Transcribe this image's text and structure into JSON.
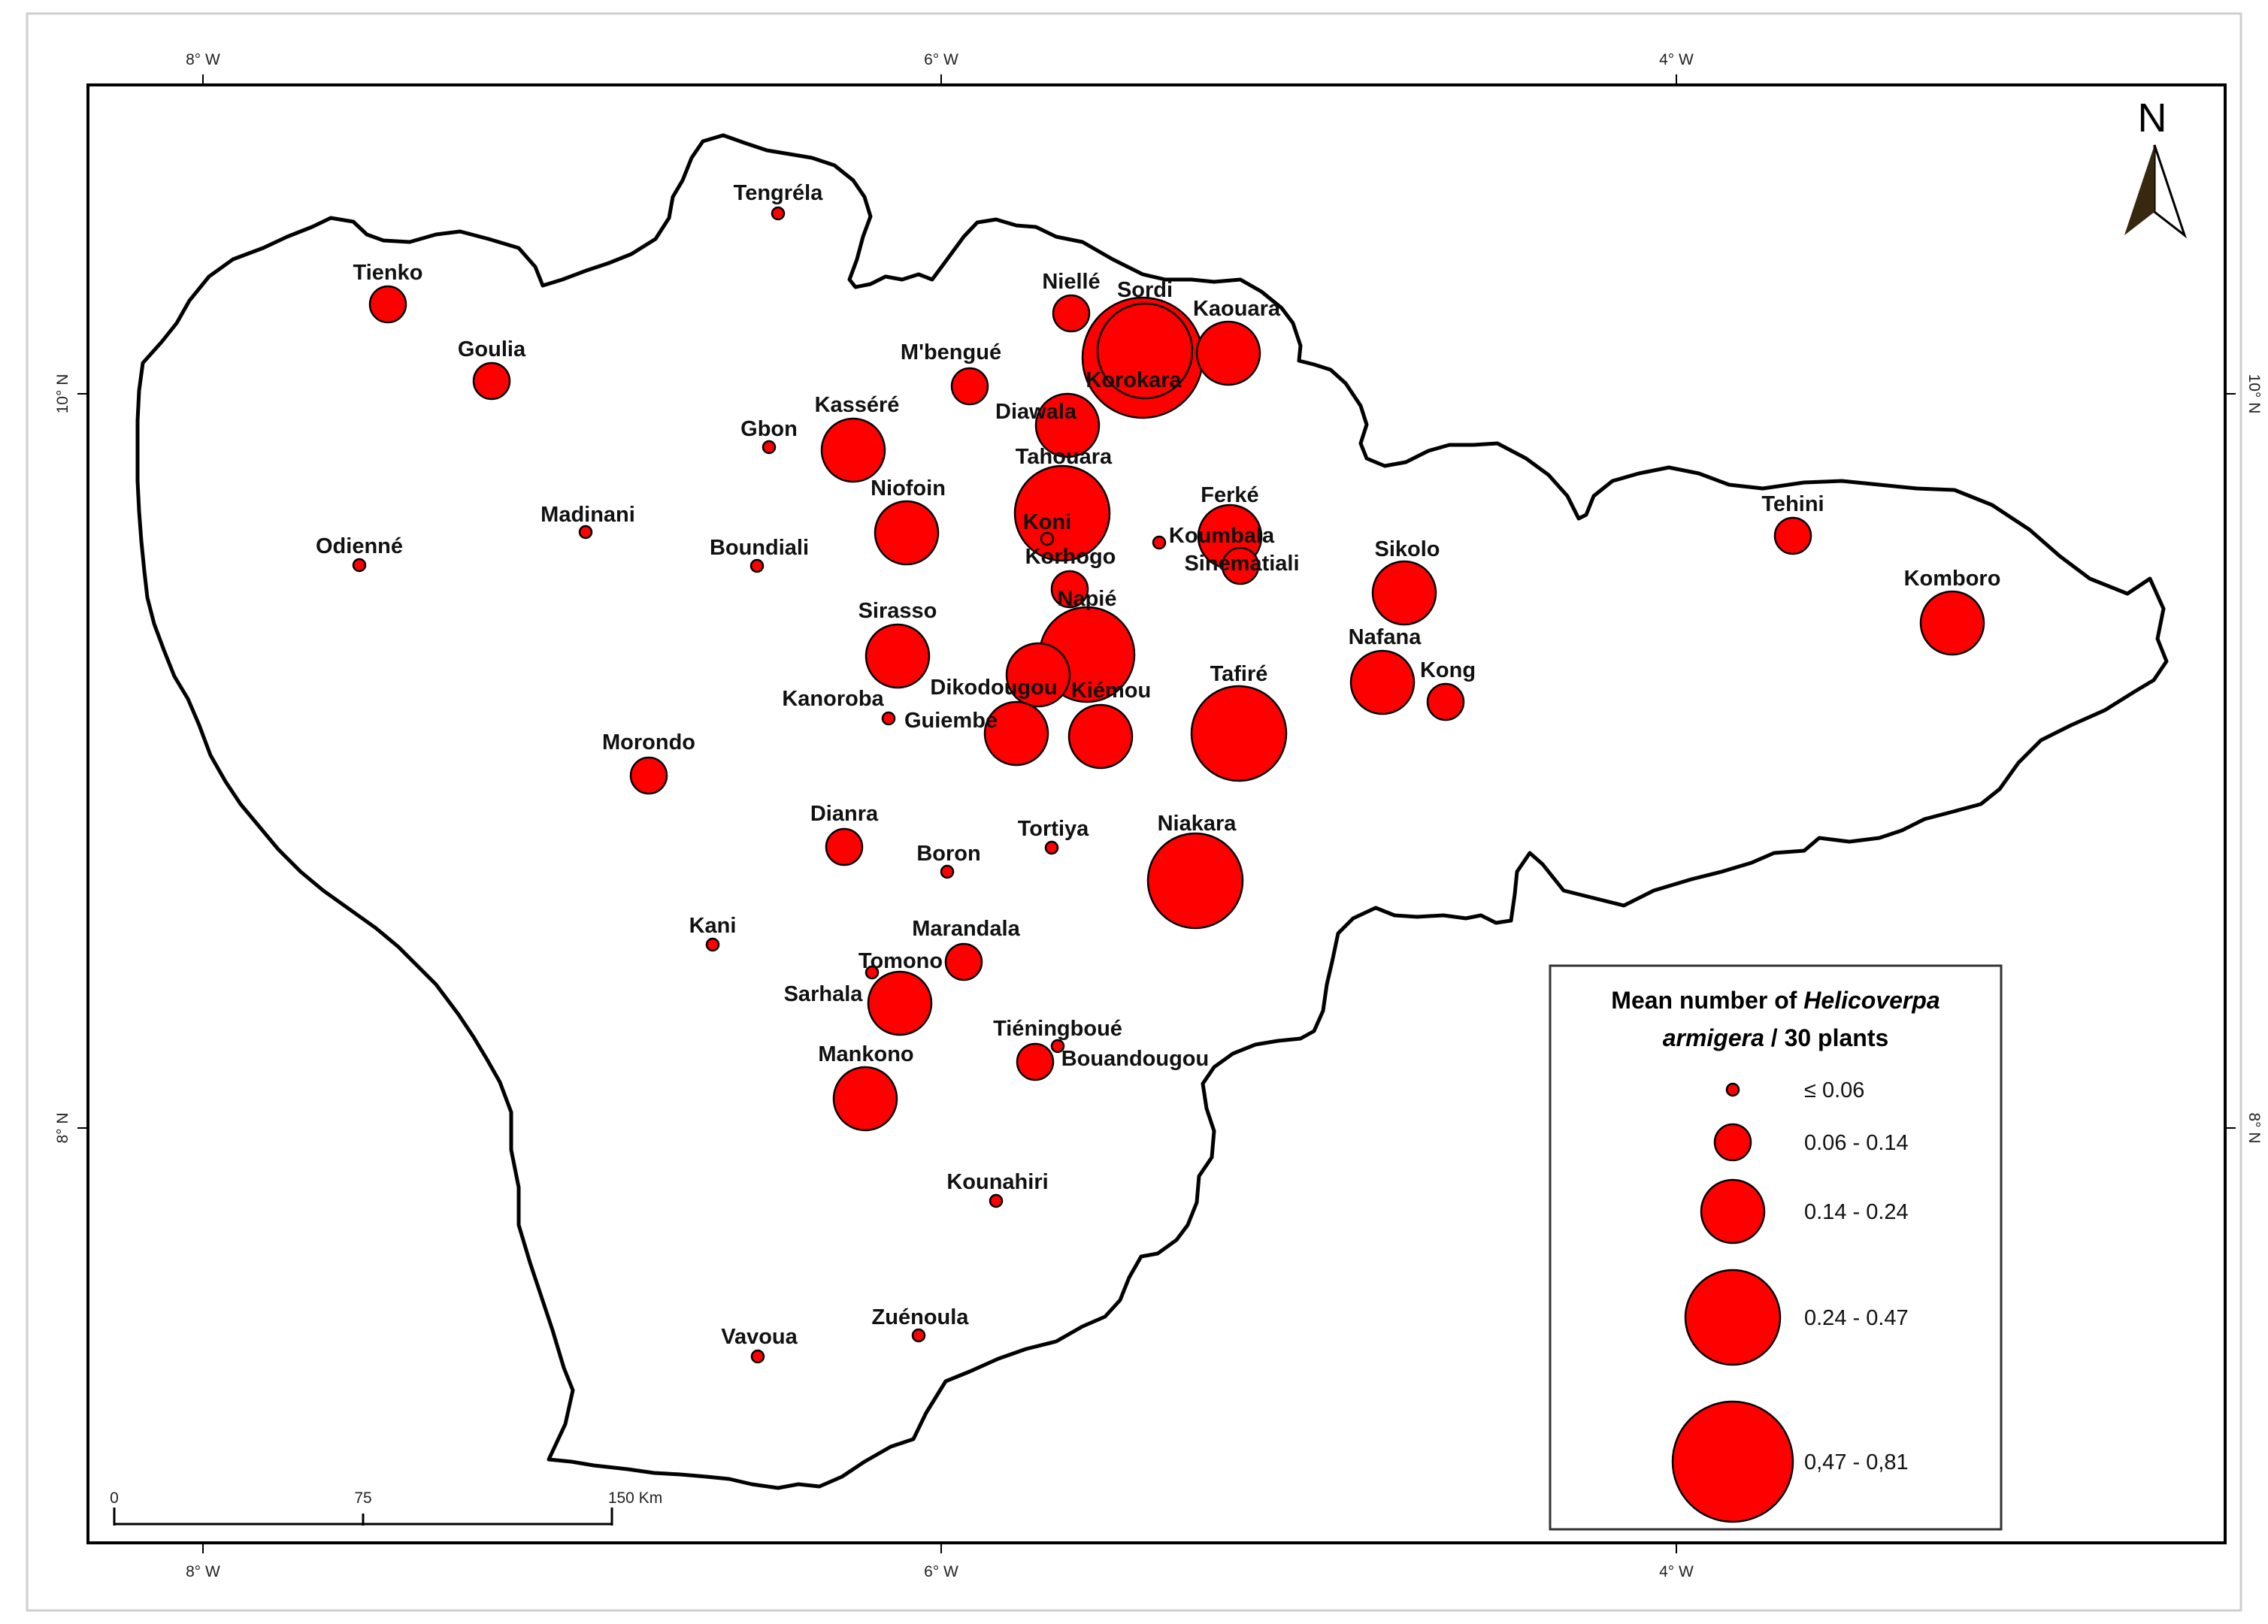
{
  "map": {
    "north_label": "N",
    "lon_ticks": [
      {
        "value": -8,
        "label": "8° W"
      },
      {
        "value": -6,
        "label": "6° W"
      },
      {
        "value": -4,
        "label": "4° W"
      }
    ],
    "lat_ticks": [
      {
        "value": 10,
        "label": "10° N"
      },
      {
        "value": 8,
        "label": "8° N"
      }
    ],
    "scale_bar": {
      "labels": [
        "0",
        "75",
        "150 Km"
      ]
    }
  },
  "legend": {
    "title_line1_prefix": "Mean number of ",
    "title_line1_italic": "Helicoverpa",
    "title_line2_italic": "armigera",
    "title_line2_suffix": " / 30 plants",
    "classes": [
      {
        "label": "≤ 0.06",
        "class": 1
      },
      {
        "label": "0.06 - 0.14",
        "class": 2
      },
      {
        "label": "0.14 - 0.24",
        "class": 3
      },
      {
        "label": "0.24 - 0.47",
        "class": 4
      },
      {
        "label": "0,47 - 0,81",
        "class": 5
      }
    ],
    "symbol_color": "#ff0000"
  },
  "localities": [
    {
      "name": "Tengréla",
      "class": 1
    },
    {
      "name": "Tienko",
      "class": 2
    },
    {
      "name": "Goulia",
      "class": 2
    },
    {
      "name": "Niellé",
      "class": 2
    },
    {
      "name": "Sordi",
      "class": 4
    },
    {
      "name": "Kaouara",
      "class": 3
    },
    {
      "name": "M'bengué",
      "class": 2
    },
    {
      "name": "Korokara",
      "class": 5
    },
    {
      "name": "Diawala",
      "class": 3
    },
    {
      "name": "Kasséré",
      "class": 3
    },
    {
      "name": "Gbon",
      "class": 1
    },
    {
      "name": "Tahouara",
      "class": 4
    },
    {
      "name": "Niofoin",
      "class": 3
    },
    {
      "name": "Koni",
      "class": 1
    },
    {
      "name": "Ferké",
      "class": 3
    },
    {
      "name": "Koumbala",
      "class": 1
    },
    {
      "name": "Sinématiali",
      "class": 2
    },
    {
      "name": "Korhogo",
      "class": 2
    },
    {
      "name": "Madinani",
      "class": 1
    },
    {
      "name": "Odienné",
      "class": 1
    },
    {
      "name": "Boundiali",
      "class": 1
    },
    {
      "name": "Sikolo",
      "class": 3
    },
    {
      "name": "Tehini",
      "class": 2
    },
    {
      "name": "Komboro",
      "class": 3
    },
    {
      "name": "Napié",
      "class": 4
    },
    {
      "name": "Sirasso",
      "class": 3
    },
    {
      "name": "Dikodougou",
      "class": 3
    },
    {
      "name": "Kiémou",
      "class": 3
    },
    {
      "name": "Tafiré",
      "class": 4
    },
    {
      "name": "Nafana",
      "class": 3
    },
    {
      "name": "Kong",
      "class": 2
    },
    {
      "name": "Kanoroba",
      "class": 1
    },
    {
      "name": "Guiembé",
      "class": 3
    },
    {
      "name": "Morondo",
      "class": 2
    },
    {
      "name": "Dianra",
      "class": 2
    },
    {
      "name": "Boron",
      "class": 1
    },
    {
      "name": "Tortiya",
      "class": 1
    },
    {
      "name": "Niakara",
      "class": 4
    },
    {
      "name": "Kani",
      "class": 1
    },
    {
      "name": "Marandala",
      "class": 2
    },
    {
      "name": "Tomono",
      "class": 1
    },
    {
      "name": "Sarhala",
      "class": 3
    },
    {
      "name": "Tiéningboué",
      "class": 1
    },
    {
      "name": "Bouandougou",
      "class": 2
    },
    {
      "name": "Mankono",
      "class": 3
    },
    {
      "name": "Kounahiri",
      "class": 1
    },
    {
      "name": "Zuénoula",
      "class": 1
    },
    {
      "name": "Vavoua",
      "class": 1
    }
  ]
}
